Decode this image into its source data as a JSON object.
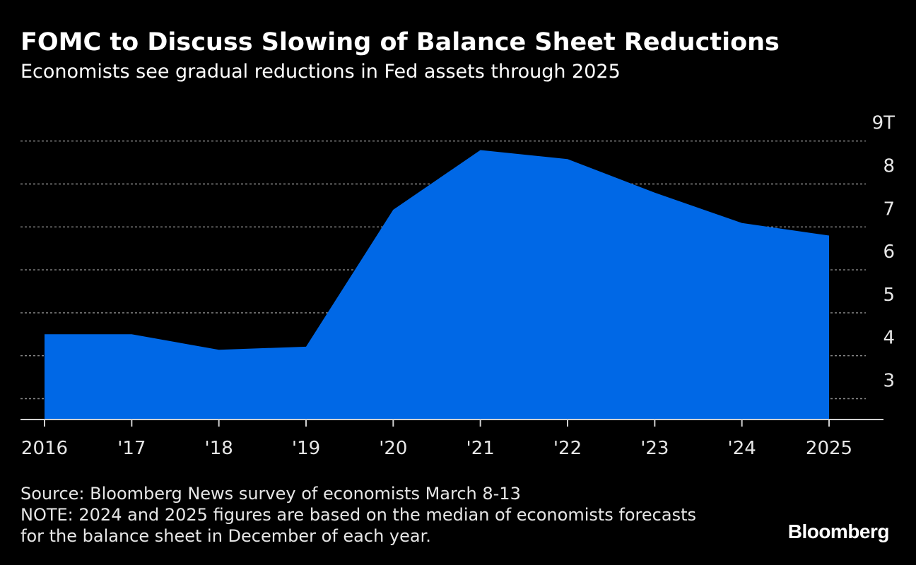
{
  "header": {
    "title": "FOMC to Discuss Slowing of Balance Sheet Reductions",
    "subtitle": "Economists see gradual reductions in Fed assets through 2025"
  },
  "footer": {
    "source": "Source: Bloomberg News survey of economists March 8-13",
    "note_line1": "NOTE: 2024 and 2025 figures are based on the median of economists forecasts",
    "note_line2": "for the balance sheet in December of each year."
  },
  "brand": {
    "logo": "Bloomberg"
  },
  "colors": {
    "background": "#000000",
    "area": "#0068E6",
    "gridline": "#8c8c8c",
    "text": "#ffffff"
  },
  "chart_data": {
    "type": "area",
    "title": "FOMC to Discuss Slowing of Balance Sheet Reductions",
    "subtitle": "Economists see gradual reductions in Fed assets through 2025",
    "xlabel": "",
    "ylabel": "",
    "x_ticks": [
      "2016",
      "'17",
      "'18",
      "'19",
      "'20",
      "'21",
      "'22",
      "'23",
      "'24",
      "'25"
    ],
    "x_tick_labels": [
      "2016",
      "'17",
      "'18",
      "'19",
      "'20",
      "'21",
      "'22",
      "'23",
      "'24",
      "2025"
    ],
    "y_ticks": [
      3,
      4,
      5,
      6,
      7,
      8,
      9
    ],
    "y_tick_labels": [
      "3",
      "4",
      "5",
      "6",
      "7",
      "8",
      "9T"
    ],
    "y_axis_side": "right",
    "ylim": [
      2.03,
      9.0
    ],
    "grid": true,
    "series": [
      {
        "x": [
          2016,
          2017,
          2018,
          2019,
          2020,
          2021,
          2022,
          2023,
          2024,
          2025
        ],
        "values": [
          4.5,
          4.5,
          4.14,
          4.21,
          7.4,
          8.79,
          8.58,
          7.8,
          7.09,
          6.8
        ]
      }
    ]
  }
}
